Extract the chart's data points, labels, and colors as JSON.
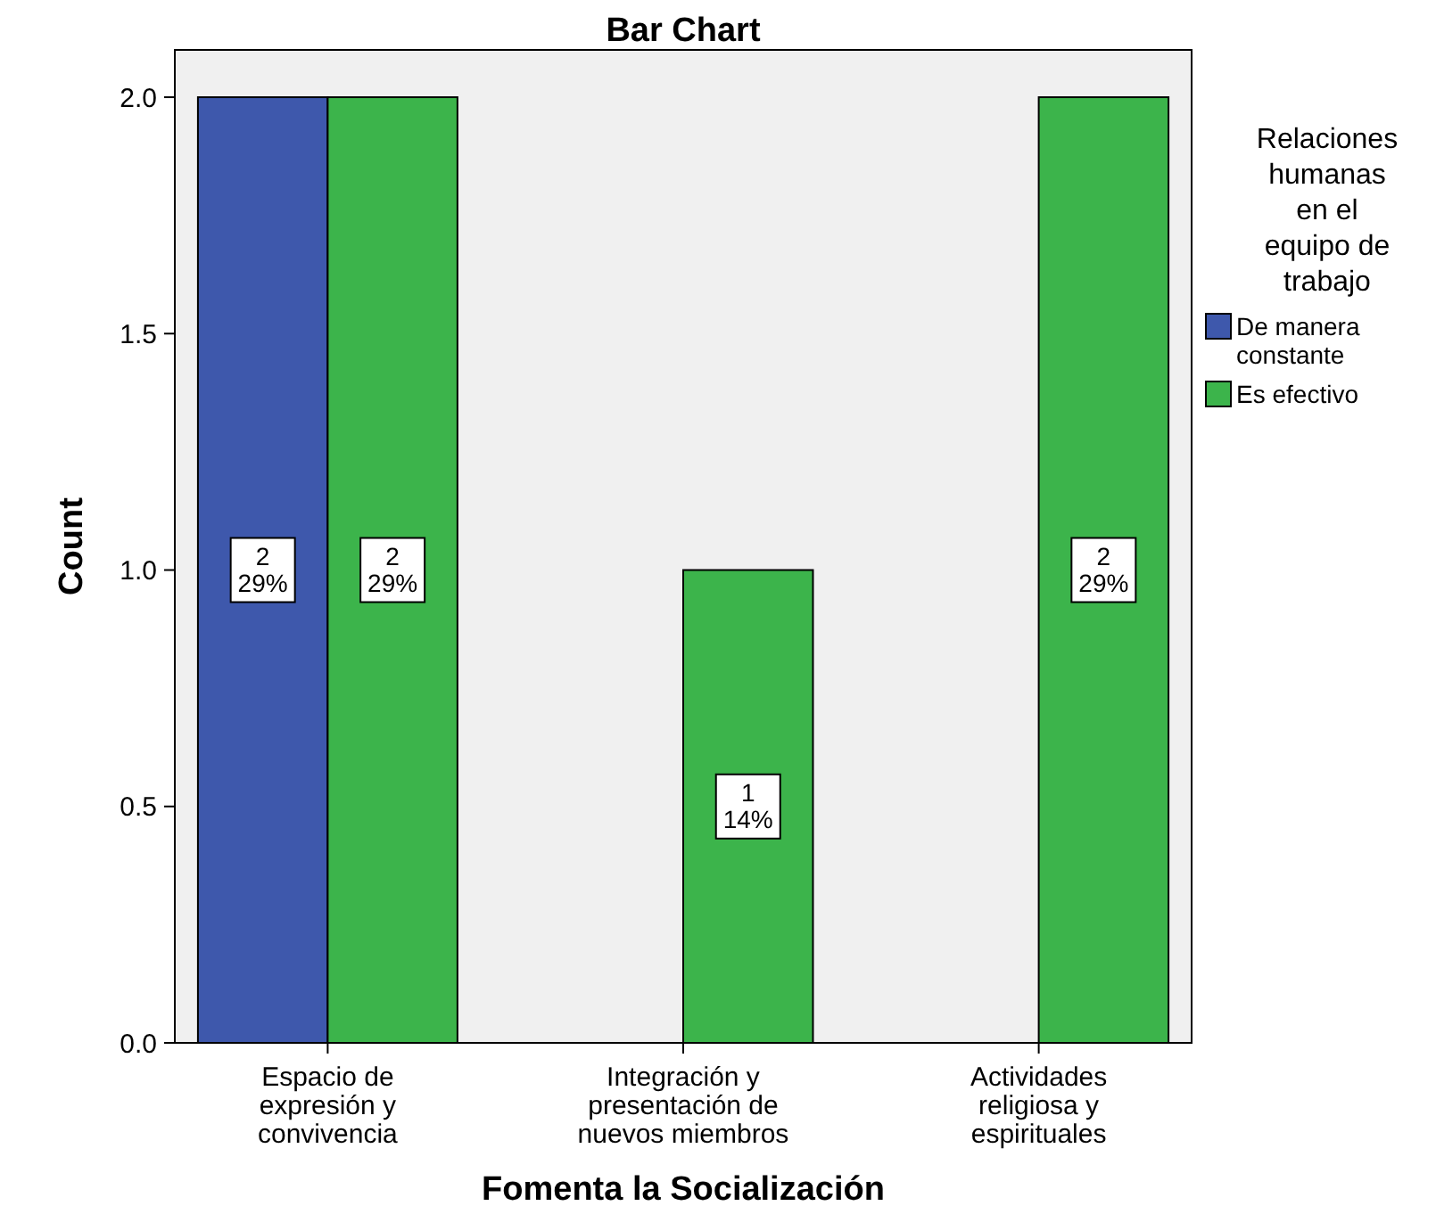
{
  "chart_data": {
    "type": "bar",
    "title": "Bar Chart",
    "xlabel": "Fomenta la Socialización",
    "ylabel": "Count",
    "legend_title": "Relaciones humanas en el equipo de trabajo",
    "legend": "top right",
    "grid": false,
    "categories": [
      "Espacio de expresión y convivencia",
      "Integración y presentación de nuevos miembros",
      "Actividades religiosa y espirituales"
    ],
    "ylim": [
      0,
      2.1
    ],
    "yticks": [
      {
        "value": 0,
        "label": "0.0"
      },
      {
        "value": 0.5,
        "label": "0.5"
      },
      {
        "value": 1,
        "label": "1.0"
      },
      {
        "value": 1.5,
        "label": "1.5"
      },
      {
        "value": 2,
        "label": "2.0"
      }
    ],
    "series": [
      {
        "name": "De manera constante",
        "color": "#3e58ac",
        "values": [
          2,
          null,
          null
        ],
        "value_labels": [
          "2\n29%",
          null,
          null
        ]
      },
      {
        "name": "Es efectivo",
        "color": "#3cb44b",
        "values": [
          2,
          1,
          2
        ],
        "value_labels": [
          "2\n29%",
          "1\n14%",
          "2\n29%"
        ]
      }
    ]
  }
}
